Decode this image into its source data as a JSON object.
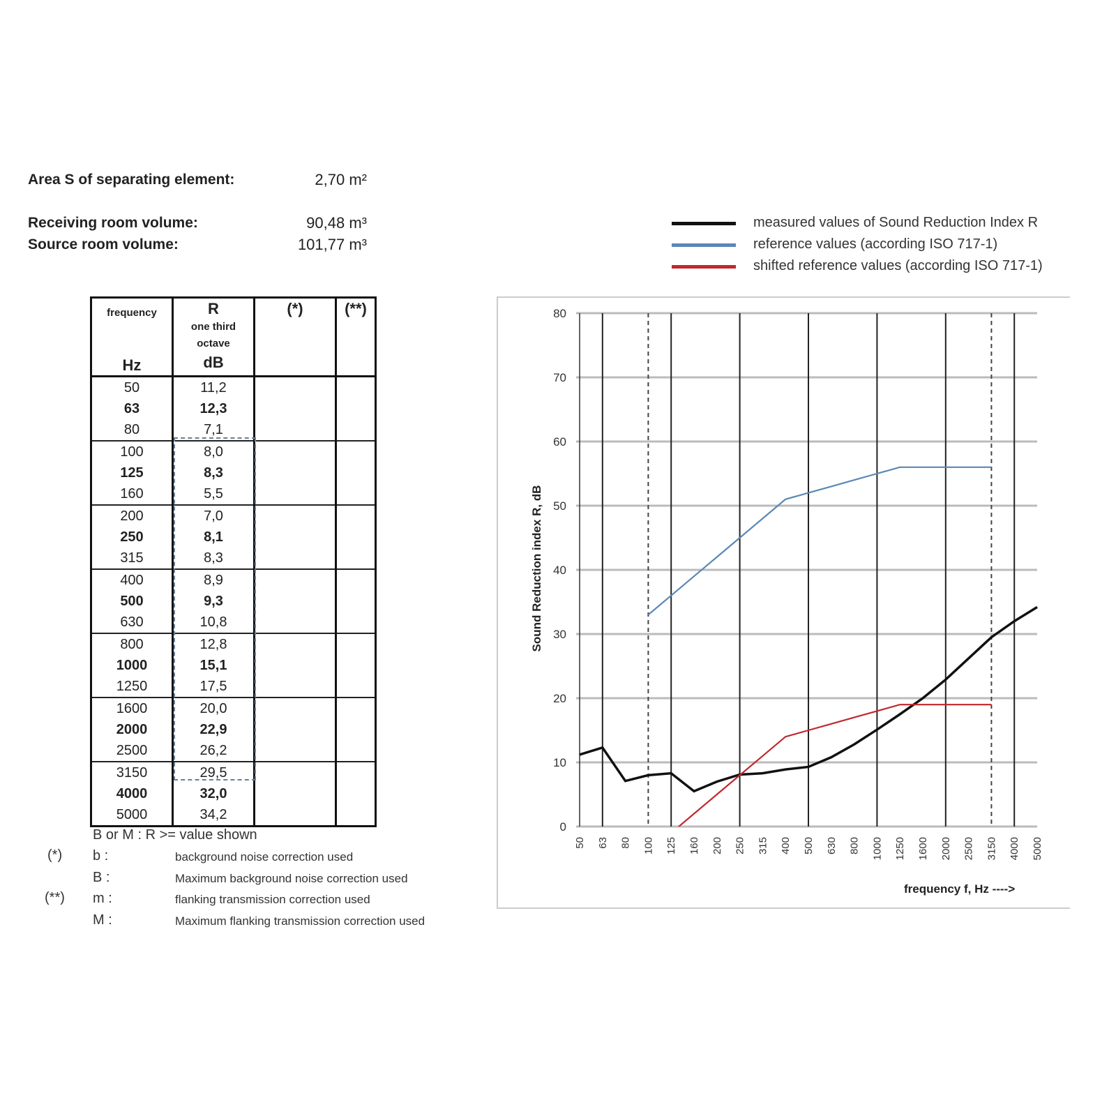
{
  "info": {
    "area_label": "Area S of separating element:",
    "area_value": "2,70  m²",
    "receiving_label": "Receiving room volume:",
    "receiving_value": "90,48  m³",
    "source_label": "Source room volume:",
    "source_value": "101,77  m³"
  },
  "table": {
    "headers": {
      "freq_top": "frequency",
      "freq_unit": "Hz",
      "r_top": "R",
      "r_sub": "one third octave",
      "r_unit": "dB",
      "col3": "(*)",
      "col4": "(**)"
    },
    "rows": [
      [
        "50",
        "11,2"
      ],
      [
        "63",
        "12,3"
      ],
      [
        "80",
        "7,1"
      ],
      [
        "100",
        "8,0"
      ],
      [
        "125",
        "8,3"
      ],
      [
        "160",
        "5,5"
      ],
      [
        "200",
        "7,0"
      ],
      [
        "250",
        "8,1"
      ],
      [
        "315",
        "8,3"
      ],
      [
        "400",
        "8,9"
      ],
      [
        "500",
        "9,3"
      ],
      [
        "630",
        "10,8"
      ],
      [
        "800",
        "12,8"
      ],
      [
        "1000",
        "15,1"
      ],
      [
        "1250",
        "17,5"
      ],
      [
        "1600",
        "20,0"
      ],
      [
        "2000",
        "22,9"
      ],
      [
        "2500",
        "26,2"
      ],
      [
        "3150",
        "29,5"
      ],
      [
        "4000",
        "32,0"
      ],
      [
        "5000",
        "34,2"
      ]
    ]
  },
  "footnotes": {
    "note": "B or M : R >= value shown",
    "star1": "(*)",
    "star2": "(**)",
    "items": [
      [
        "b :",
        "background  noise correction used"
      ],
      [
        "B :",
        "Maximum background noise correction used"
      ],
      [
        "m :",
        "flanking transmission correction used"
      ],
      [
        "M :",
        "Maximum flanking transmission correction used"
      ]
    ]
  },
  "chart_data": {
    "type": "line",
    "xlabel": "frequency f, Hz ---->",
    "ylabel": "Sound Reduction index R, dB",
    "ylim": [
      0,
      80
    ],
    "yticks": [
      0,
      10,
      20,
      30,
      40,
      50,
      60,
      70,
      80
    ],
    "grid": true,
    "legend_position": "top-right",
    "categories": [
      "50",
      "63",
      "80",
      "100",
      "125",
      "160",
      "200",
      "250",
      "315",
      "400",
      "500",
      "630",
      "800",
      "1000",
      "1250",
      "1600",
      "2000",
      "2500",
      "3150",
      "4000",
      "5000"
    ],
    "series": [
      {
        "name": "measured values of Sound Reduction Index R",
        "color": "#111111",
        "values": [
          11.2,
          12.3,
          7.1,
          8.0,
          8.3,
          5.5,
          7.0,
          8.1,
          8.3,
          8.9,
          9.3,
          10.8,
          12.8,
          15.1,
          17.5,
          20.0,
          22.9,
          26.2,
          29.5,
          32.0,
          34.2
        ]
      },
      {
        "name": "reference values (according ISO 717-1)",
        "color": "#5b87b5",
        "values": [
          null,
          null,
          null,
          33,
          36,
          39,
          42,
          45,
          48,
          51,
          52,
          53,
          54,
          55,
          56,
          56,
          56,
          56,
          56,
          null,
          null
        ]
      },
      {
        "name": "shifted reference values (according ISO 717-1)",
        "color": "#c0282d",
        "values": [
          null,
          null,
          null,
          -4,
          -1,
          2,
          5,
          8,
          11,
          14,
          15,
          16,
          17,
          18,
          19,
          19,
          19,
          19,
          19,
          null,
          null
        ]
      }
    ]
  }
}
